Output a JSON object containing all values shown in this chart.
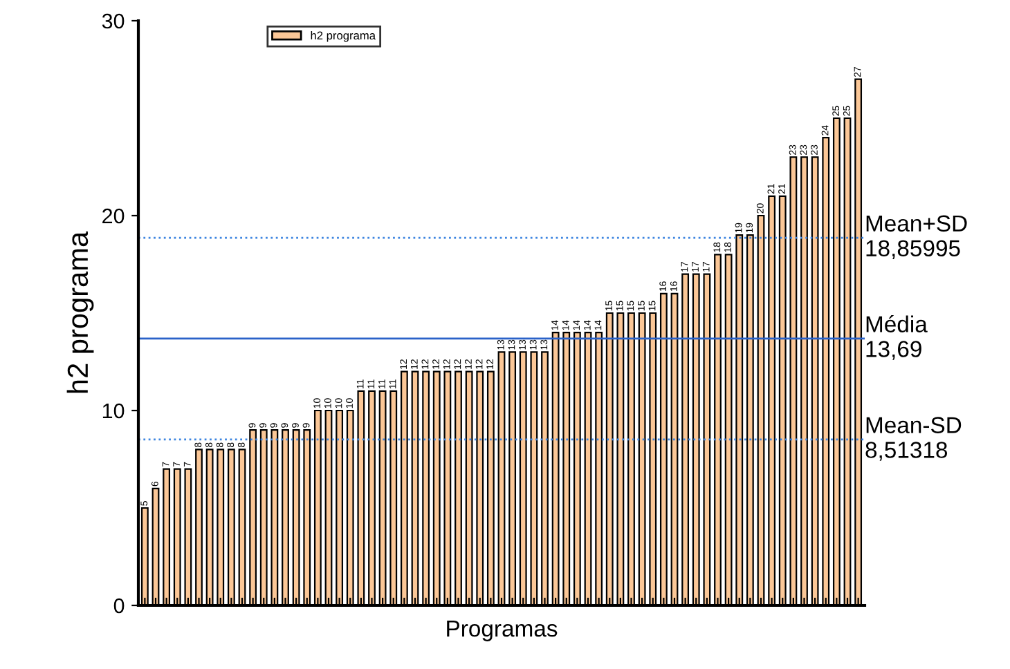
{
  "chart_data": {
    "type": "bar",
    "xlabel": "Programas",
    "ylabel": "h2 programa",
    "categories": [
      null,
      null,
      null,
      null,
      null,
      null,
      null,
      null,
      null,
      null,
      null,
      null,
      null,
      null,
      null,
      null,
      null,
      null,
      null,
      null,
      null,
      null,
      null,
      null,
      null,
      null,
      null,
      null,
      null,
      null,
      null,
      null,
      null,
      null,
      null,
      null,
      null,
      null,
      null,
      null,
      null,
      null,
      null,
      null,
      null,
      null,
      null,
      null,
      null,
      null,
      null,
      null,
      null,
      null,
      null,
      null,
      null,
      null,
      null,
      null,
      null,
      null,
      null,
      null,
      null,
      null,
      null
    ],
    "series": [
      {
        "name": "h2 programa",
        "color": "#fbc797",
        "values": [
          5,
          6,
          7,
          7,
          7,
          8,
          8,
          8,
          8,
          8,
          9,
          9,
          9,
          9,
          9,
          9,
          10,
          10,
          10,
          10,
          11,
          11,
          11,
          11,
          12,
          12,
          12,
          12,
          12,
          12,
          12,
          12,
          12,
          13,
          13,
          13,
          13,
          13,
          14,
          14,
          14,
          14,
          14,
          15,
          15,
          15,
          15,
          15,
          16,
          16,
          17,
          17,
          17,
          18,
          18,
          19,
          19,
          20,
          21,
          21,
          23,
          23,
          23,
          24,
          25,
          25,
          27
        ]
      }
    ],
    "data_labels": true,
    "ylim": [
      0,
      30
    ],
    "yticks": [
      0,
      10,
      20,
      30
    ],
    "ref_lines": [
      {
        "axis": "y",
        "value": 18.85995,
        "label": "Mean+SD\n18,85995",
        "color": "#3d85e0",
        "line_style": "dotted"
      },
      {
        "axis": "y",
        "value": 13.69,
        "label": "Média\n13,69",
        "color": "#2a62c9",
        "line_style": "solid"
      },
      {
        "axis": "y",
        "value": 8.51318,
        "label": "Mean-SD\n8,51318",
        "color": "#3d85e0",
        "line_style": "dotted"
      }
    ],
    "legend": "top left",
    "grid": false
  }
}
